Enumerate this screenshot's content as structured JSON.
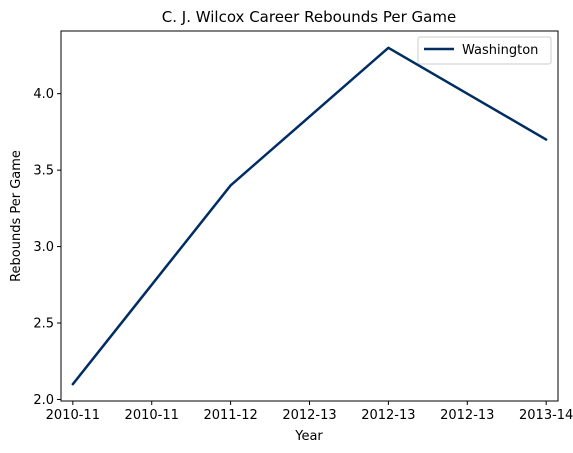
{
  "chart_data": {
    "type": "line",
    "title": "C. J. Wilcox Career Rebounds Per Game",
    "xlabel": "Year",
    "ylabel": "Rebounds Per Game",
    "x_tick_labels": [
      "2010-11",
      "2010-11",
      "2011-12",
      "2012-13",
      "2012-13",
      "2012-13",
      "2013-14"
    ],
    "y_tick_labels": [
      "2.0",
      "2.5",
      "3.0",
      "3.5",
      "4.0"
    ],
    "y_ticks": [
      2.0,
      2.5,
      3.0,
      3.5,
      4.0
    ],
    "xlim": [
      -0.15,
      6.15
    ],
    "ylim": [
      1.99,
      4.41
    ],
    "grid": false,
    "legend_position": "top-right",
    "series": [
      {
        "name": "Washington",
        "color": "#002D62",
        "x": [
          0,
          2,
          4,
          6
        ],
        "y": [
          2.1,
          3.4,
          4.3,
          3.7
        ]
      }
    ]
  }
}
